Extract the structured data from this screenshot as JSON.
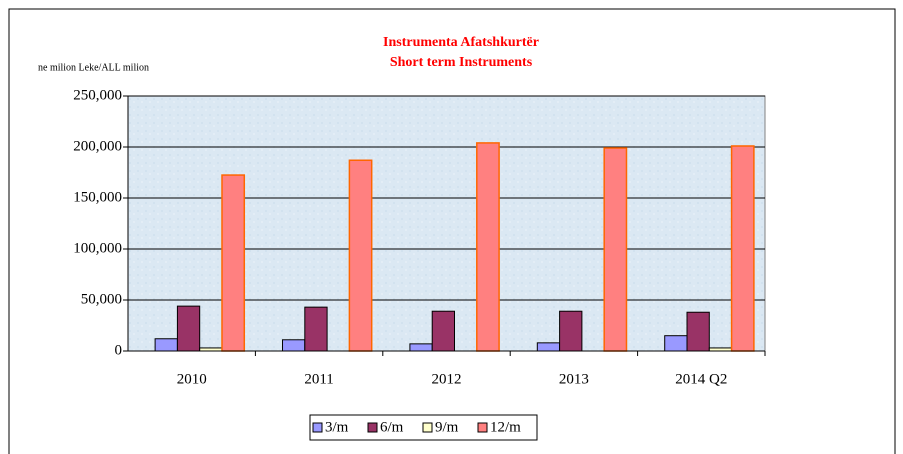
{
  "chart_data": {
    "type": "bar",
    "title": [
      "Instrumenta Afatshkurtër",
      "Short term Instruments"
    ],
    "y_label": "ne milion Leke/ALL milion",
    "categories": [
      "2010",
      "2011",
      "2012",
      "2013",
      "2014 Q2"
    ],
    "series": [
      {
        "name": "3/m",
        "color": "#9999ff",
        "values": [
          12000,
          11000,
          7000,
          8000,
          15000
        ]
      },
      {
        "name": "6/m",
        "color": "#993366",
        "values": [
          44000,
          43000,
          39000,
          39000,
          38000
        ]
      },
      {
        "name": "9/m",
        "color": "#ffffcc",
        "values": [
          3000,
          0,
          0,
          0,
          3000
        ]
      },
      {
        "name": "12/m",
        "color": "#ff8080",
        "values": [
          172500,
          187000,
          204000,
          199000,
          201000
        ]
      }
    ],
    "ylim": [
      0,
      250000
    ],
    "yticks": [
      0,
      {
        "value": 50000,
        "label": "50,000"
      },
      {
        "value": 100000,
        "label": "100,000"
      },
      {
        "value": 150000,
        "label": "150,000"
      },
      {
        "value": 200000,
        "label": "200,000"
      },
      {
        "value": 250000,
        "label": "250,000"
      }
    ],
    "grid": true,
    "legend": "bottom"
  }
}
